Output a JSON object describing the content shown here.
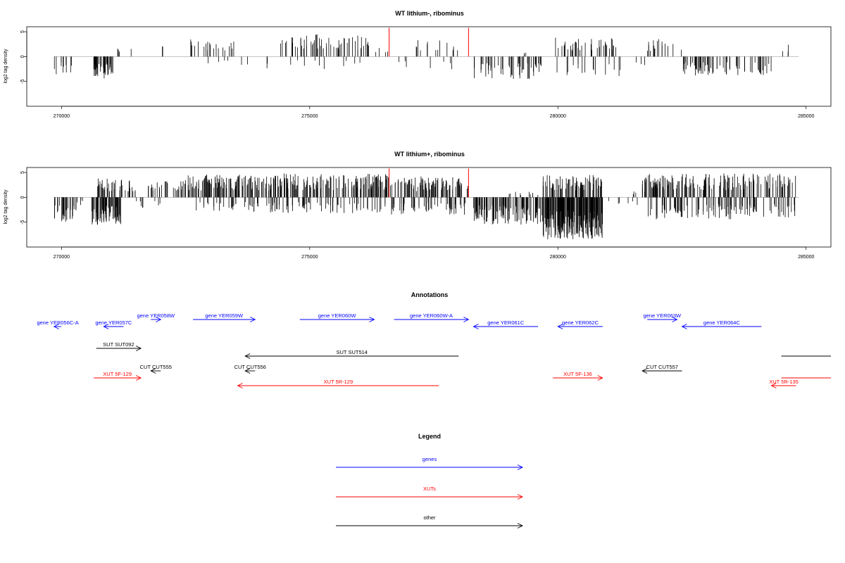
{
  "colors": {
    "gene": "#0000ff",
    "xut": "#ff0000",
    "other": "#000000",
    "marker": "#ff0000",
    "bar": "#000000"
  },
  "chart_data": [
    {
      "type": "bar",
      "title": "WT lithium-, ribominus",
      "ylabel": "log2 tag density",
      "xlim": [
        269300,
        285500
      ],
      "ylim": [
        -10,
        6
      ],
      "xticks": [
        270000,
        275000,
        280000,
        285000
      ],
      "yticks": [
        5,
        0,
        -5
      ],
      "grid": false,
      "markers_x": [
        276600,
        278200
      ],
      "segments": [
        {
          "start": 269850,
          "end": 270200,
          "sign": -1,
          "amp": 3.8,
          "n": 10,
          "seed": 1
        },
        {
          "start": 270650,
          "end": 271050,
          "sign": -1,
          "amp": 4.4,
          "n": 40,
          "seed": 2
        },
        {
          "start": 271100,
          "end": 271250,
          "sign": 1,
          "amp": 1.6,
          "n": 4,
          "seed": 3
        },
        {
          "start": 271400,
          "end": 271450,
          "sign": 1,
          "amp": 1.9,
          "n": 1,
          "seed": 4
        },
        {
          "start": 271950,
          "end": 272050,
          "sign": 1,
          "amp": 3.0,
          "n": 2,
          "seed": 5
        },
        {
          "start": 272600,
          "end": 273500,
          "sign": 1,
          "amp": 3.5,
          "n": 20,
          "seed": 6
        },
        {
          "start": 272650,
          "end": 273900,
          "sign": -1,
          "amp": 2.2,
          "n": 6,
          "seed": 7
        },
        {
          "start": 274100,
          "end": 274200,
          "sign": -1,
          "amp": 2.5,
          "n": 2,
          "seed": 8
        },
        {
          "start": 274400,
          "end": 276200,
          "sign": 1,
          "amp": 4.5,
          "n": 60,
          "seed": 9
        },
        {
          "start": 274500,
          "end": 276200,
          "sign": -1,
          "amp": 2.5,
          "n": 10,
          "seed": 10
        },
        {
          "start": 276300,
          "end": 276600,
          "sign": 1,
          "amp": 2.0,
          "n": 4,
          "seed": 11
        },
        {
          "start": 276700,
          "end": 277000,
          "sign": -1,
          "amp": 2.6,
          "n": 3,
          "seed": 12
        },
        {
          "start": 277100,
          "end": 278000,
          "sign": 1,
          "amp": 3.5,
          "n": 14,
          "seed": 13
        },
        {
          "start": 277100,
          "end": 277900,
          "sign": -1,
          "amp": 3.0,
          "n": 4,
          "seed": 14
        },
        {
          "start": 278300,
          "end": 279700,
          "sign": -1,
          "amp": 4.5,
          "n": 50,
          "seed": 15
        },
        {
          "start": 279300,
          "end": 279600,
          "sign": 1,
          "amp": 0.8,
          "n": 3,
          "seed": 16
        },
        {
          "start": 279900,
          "end": 281200,
          "sign": 1,
          "amp": 3.8,
          "n": 40,
          "seed": 17
        },
        {
          "start": 279900,
          "end": 281300,
          "sign": -1,
          "amp": 4.0,
          "n": 16,
          "seed": 18
        },
        {
          "start": 281500,
          "end": 281800,
          "sign": -1,
          "amp": 2.0,
          "n": 3,
          "seed": 19
        },
        {
          "start": 281800,
          "end": 282500,
          "sign": 1,
          "amp": 3.6,
          "n": 16,
          "seed": 20
        },
        {
          "start": 282500,
          "end": 284300,
          "sign": -1,
          "amp": 3.8,
          "n": 70,
          "seed": 21
        },
        {
          "start": 284500,
          "end": 284800,
          "sign": 1,
          "amp": 3.2,
          "n": 3,
          "seed": 22
        }
      ]
    },
    {
      "type": "bar",
      "title": "WT lithium+, ribominus",
      "ylabel": "log2 tag density",
      "xlim": [
        269300,
        285500
      ],
      "ylim": [
        -10,
        6
      ],
      "xticks": [
        270000,
        275000,
        280000,
        285000
      ],
      "yticks": [
        5,
        0,
        -5
      ],
      "grid": false,
      "markers_x": [
        276600,
        278200
      ],
      "segments": [
        {
          "start": 269850,
          "end": 270300,
          "sign": -1,
          "amp": 5.0,
          "n": 30,
          "seed": 31
        },
        {
          "start": 270300,
          "end": 270500,
          "sign": -1,
          "amp": 2.0,
          "n": 4,
          "seed": 32
        },
        {
          "start": 270600,
          "end": 271200,
          "sign": -1,
          "amp": 5.6,
          "n": 80,
          "seed": 33
        },
        {
          "start": 270700,
          "end": 271500,
          "sign": 1,
          "amp": 3.8,
          "n": 40,
          "seed": 34
        },
        {
          "start": 271500,
          "end": 272000,
          "sign": -1,
          "amp": 2.2,
          "n": 8,
          "seed": 35
        },
        {
          "start": 271700,
          "end": 272500,
          "sign": 1,
          "amp": 3.5,
          "n": 30,
          "seed": 36
        },
        {
          "start": 272500,
          "end": 274200,
          "sign": 1,
          "amp": 4.6,
          "n": 110,
          "seed": 37
        },
        {
          "start": 272600,
          "end": 274400,
          "sign": -1,
          "amp": 3.0,
          "n": 40,
          "seed": 38
        },
        {
          "start": 274200,
          "end": 276600,
          "sign": 1,
          "amp": 4.8,
          "n": 150,
          "seed": 39
        },
        {
          "start": 274200,
          "end": 276600,
          "sign": -1,
          "amp": 3.2,
          "n": 60,
          "seed": 40
        },
        {
          "start": 276600,
          "end": 278200,
          "sign": 1,
          "amp": 4.2,
          "n": 90,
          "seed": 41
        },
        {
          "start": 276600,
          "end": 278200,
          "sign": -1,
          "amp": 3.5,
          "n": 50,
          "seed": 42
        },
        {
          "start": 278300,
          "end": 279700,
          "sign": -1,
          "amp": 5.5,
          "n": 110,
          "seed": 43
        },
        {
          "start": 278900,
          "end": 279600,
          "sign": 1,
          "amp": 1.2,
          "n": 10,
          "seed": 44
        },
        {
          "start": 279700,
          "end": 280900,
          "sign": -1,
          "amp": 8.5,
          "n": 200,
          "seed": 45
        },
        {
          "start": 279700,
          "end": 280900,
          "sign": 1,
          "amp": 4.5,
          "n": 80,
          "seed": 46
        },
        {
          "start": 281000,
          "end": 281600,
          "sign": -1,
          "amp": 1.6,
          "n": 6,
          "seed": 47
        },
        {
          "start": 281500,
          "end": 281800,
          "sign": 1,
          "amp": 1.4,
          "n": 4,
          "seed": 48
        },
        {
          "start": 281700,
          "end": 284800,
          "sign": 1,
          "amp": 4.8,
          "n": 170,
          "seed": 49
        },
        {
          "start": 281800,
          "end": 284800,
          "sign": -1,
          "amp": 4.5,
          "n": 110,
          "seed": 50
        }
      ]
    }
  ],
  "annotations": {
    "title": "Annotations",
    "xlim": [
      269300,
      285500
    ],
    "tracks": [
      {
        "label": "gene YER056C-A",
        "type": "gene",
        "start": 270000,
        "end": 269850,
        "row": 2
      },
      {
        "label": "gene YER057C",
        "type": "gene",
        "start": 271250,
        "end": 270850,
        "row": 2
      },
      {
        "label": "gene YER058W",
        "type": "gene",
        "start": 271800,
        "end": 272000,
        "row": 1
      },
      {
        "label": "gene YER059W",
        "type": "gene",
        "start": 272650,
        "end": 273900,
        "row": 1
      },
      {
        "label": "gene YER060W",
        "type": "gene",
        "start": 274800,
        "end": 276300,
        "row": 1
      },
      {
        "label": "gene YER060W-A",
        "type": "gene",
        "start": 276700,
        "end": 278200,
        "row": 1
      },
      {
        "label": "gene YER061C",
        "type": "gene",
        "start": 279600,
        "end": 278300,
        "row": 2
      },
      {
        "label": "gene YER062C",
        "type": "gene",
        "start": 280900,
        "end": 280000,
        "row": 2
      },
      {
        "label": "gene YER063W",
        "type": "gene",
        "start": 281800,
        "end": 282400,
        "row": 1
      },
      {
        "label": "gene YER064C",
        "type": "gene",
        "start": 284100,
        "end": 282500,
        "row": 2
      },
      {
        "label": "SUT SUT092",
        "type": "other",
        "start": 270700,
        "end": 271600,
        "row": 3
      },
      {
        "label": "SUT SUT514",
        "type": "other",
        "start": 278000,
        "end": 273700,
        "row": 4
      },
      {
        "label": "CUT CUT555",
        "type": "other",
        "start": 272000,
        "end": 271800,
        "row": 5
      },
      {
        "label": "CUT CUT556",
        "type": "other",
        "start": 273900,
        "end": 273700,
        "row": 5
      },
      {
        "label": "CUT CUT557",
        "type": "other",
        "start": 282500,
        "end": 281700,
        "row": 5
      },
      {
        "label": "",
        "type": "other",
        "start": 284500,
        "end": 285500,
        "row": 4,
        "noarrow": true
      },
      {
        "label": "XUT 5F-129",
        "type": "xut",
        "start": 270650,
        "end": 271600,
        "row": 6
      },
      {
        "label": "XUT 5R-129",
        "type": "xut",
        "start": 277600,
        "end": 273550,
        "row": 7
      },
      {
        "label": "XUT 5F-136",
        "type": "xut",
        "start": 279900,
        "end": 280900,
        "row": 6
      },
      {
        "label": "XUT 5R-135",
        "type": "xut",
        "start": 284800,
        "end": 284300,
        "row": 7
      },
      {
        "label": "",
        "type": "xut",
        "start": 284500,
        "end": 285500,
        "row": 6,
        "noarrow": true
      }
    ]
  },
  "legend": {
    "title": "Legend",
    "items": [
      {
        "label": "genes",
        "type": "gene"
      },
      {
        "label": "XUTs",
        "type": "xut"
      },
      {
        "label": "other",
        "type": "other"
      }
    ]
  }
}
